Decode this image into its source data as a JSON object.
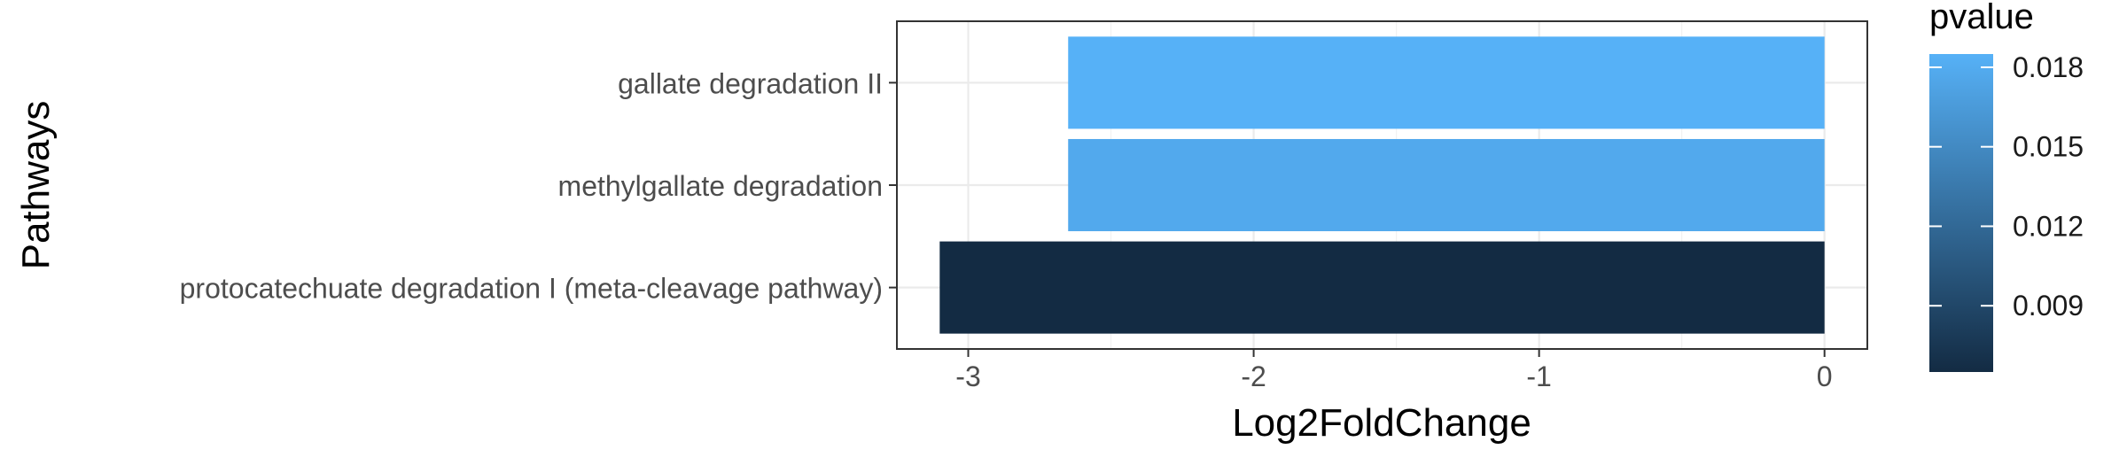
{
  "chart_data": {
    "type": "bar",
    "orientation": "horizontal",
    "title": "",
    "xlabel": "Log2FoldChange",
    "ylabel": "Pathways",
    "xlim": [
      -3.25,
      0.15
    ],
    "x_ticks": [
      {
        "value": -3,
        "label": "-3"
      },
      {
        "value": -2,
        "label": "-2"
      },
      {
        "value": -1,
        "label": "-1"
      },
      {
        "value": 0,
        "label": "0"
      }
    ],
    "categories": [
      "gallate degradation II",
      "methylgallate degradation",
      "protocatechuate degradation I (meta-cleavage pathway)"
    ],
    "values": [
      -2.65,
      -2.65,
      -3.1
    ],
    "color_values": [
      0.0185,
      0.0178,
      0.0065
    ],
    "grid": true,
    "legend": {
      "title": "pvalue",
      "position": "right",
      "range": [
        0.0065,
        0.0185
      ],
      "color_low": "#132b43",
      "color_high": "#56b1f7",
      "ticks": [
        {
          "value": 0.009,
          "label": "0.009"
        },
        {
          "value": 0.012,
          "label": "0.012"
        },
        {
          "value": 0.015,
          "label": "0.015"
        },
        {
          "value": 0.018,
          "label": "0.018"
        }
      ]
    }
  }
}
